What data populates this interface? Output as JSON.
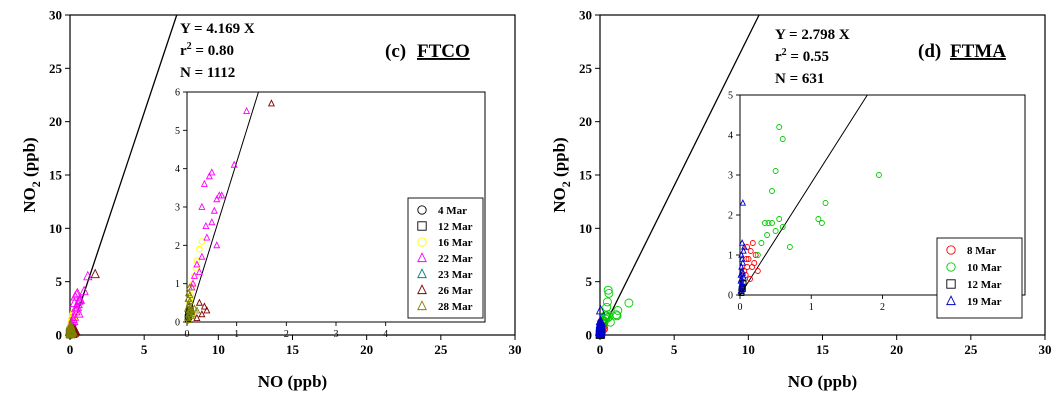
{
  "chart_data": [
    {
      "type": "scatter",
      "panel_label": "(c)",
      "site": "FTCO",
      "xlabel": "NO (ppb)",
      "ylabel": "NO2 (ppb)",
      "xlim": [
        0,
        30
      ],
      "ylim": [
        0,
        30
      ],
      "xticks": [
        "0",
        "5",
        "10",
        "15",
        "20",
        "25",
        "30"
      ],
      "yticks": [
        "0",
        "5",
        "10",
        "15",
        "20",
        "25",
        "30"
      ],
      "fit": {
        "slope": 4.169,
        "eq_text": "Y = 4.169 X",
        "r2_text": "r² = 0.80",
        "n_text": "N = 1112"
      },
      "inset": {
        "xlim": [
          0,
          6
        ],
        "ylim": [
          0,
          6
        ],
        "xticks": [
          "0",
          "1",
          "2",
          "3",
          "4"
        ],
        "yticks": [
          "0",
          "1",
          "2",
          "3",
          "4",
          "5",
          "6"
        ]
      },
      "legend_placement": "bottom-right of inset",
      "series": [
        {
          "name": "4 Mar",
          "marker": "circle",
          "color": "#000000",
          "points": [
            [
              0.02,
              0.15
            ],
            [
              0.03,
              0.25
            ],
            [
              0.05,
              0.3
            ],
            [
              0.04,
              0.1
            ],
            [
              0.06,
              0.4
            ],
            [
              0.02,
              0.05
            ]
          ]
        },
        {
          "name": "12 Mar",
          "marker": "square",
          "color": "#000000",
          "points": [
            [
              0.03,
              0.2
            ],
            [
              0.05,
              0.35
            ],
            [
              0.02,
              0.12
            ],
            [
              0.07,
              0.28
            ]
          ]
        },
        {
          "name": "16 Mar",
          "marker": "circle",
          "color": "#ffff00",
          "points": [
            [
              0.05,
              0.5
            ],
            [
              0.1,
              0.9
            ],
            [
              0.15,
              1.2
            ],
            [
              0.2,
              1.6
            ],
            [
              0.25,
              1.9
            ],
            [
              0.08,
              0.7
            ],
            [
              0.12,
              1.0
            ],
            [
              0.18,
              1.4
            ],
            [
              0.3,
              2.1
            ],
            [
              0.06,
              0.6
            ]
          ]
        },
        {
          "name": "22 Mar",
          "marker": "triangle",
          "color": "#ff00ff",
          "points": [
            [
              0.1,
              0.9
            ],
            [
              0.15,
              1.2
            ],
            [
              0.2,
              1.5
            ],
            [
              0.3,
              1.7
            ],
            [
              0.4,
              2.2
            ],
            [
              0.5,
              2.6
            ],
            [
              0.55,
              2.9
            ],
            [
              0.6,
              3.2
            ],
            [
              0.65,
              3.3
            ],
            [
              0.7,
              3.3
            ],
            [
              0.45,
              3.8
            ],
            [
              0.5,
              3.9
            ],
            [
              0.35,
              3.6
            ],
            [
              0.95,
              4.1
            ],
            [
              0.6,
              2.0
            ],
            [
              1.2,
              5.5
            ],
            [
              0.25,
              1.3
            ],
            [
              0.12,
              1.0
            ],
            [
              0.38,
              2.5
            ],
            [
              0.3,
              3.0
            ]
          ]
        },
        {
          "name": "23 Mar",
          "marker": "triangle",
          "color": "#008080",
          "points": [
            [
              0.03,
              0.2
            ],
            [
              0.05,
              0.3
            ],
            [
              0.04,
              0.15
            ],
            [
              0.06,
              0.25
            ]
          ]
        },
        {
          "name": "26 Mar",
          "marker": "triangle",
          "color": "#800000",
          "points": [
            [
              1.7,
              5.7
            ],
            [
              0.4,
              0.3
            ],
            [
              0.3,
              0.2
            ],
            [
              0.35,
              0.4
            ],
            [
              0.2,
              0.1
            ],
            [
              0.25,
              0.5
            ]
          ]
        },
        {
          "name": "28 Mar",
          "marker": "triangle",
          "color": "#808000",
          "points": [
            [
              0.02,
              0.1
            ],
            [
              0.03,
              0.2
            ],
            [
              0.05,
              0.3
            ],
            [
              0.04,
              0.45
            ],
            [
              0.06,
              0.55
            ],
            [
              0.02,
              0.6
            ],
            [
              0.03,
              0.75
            ],
            [
              0.05,
              0.9
            ],
            [
              0.07,
              0.4
            ],
            [
              0.08,
              0.3
            ],
            [
              0.1,
              0.25
            ],
            [
              0.12,
              0.2
            ],
            [
              0.15,
              0.35
            ],
            [
              0.2,
              0.3
            ],
            [
              0.04,
              0.05
            ],
            [
              0.01,
              0.35
            ],
            [
              0.09,
              0.15
            ],
            [
              0.06,
              0.7
            ]
          ]
        }
      ]
    },
    {
      "type": "scatter",
      "panel_label": "(d)",
      "site": "FTMA",
      "xlabel": "NO (ppb)",
      "ylabel": "NO2 (ppb)",
      "xlim": [
        0,
        30
      ],
      "ylim": [
        0,
        30
      ],
      "xticks": [
        "0",
        "5",
        "10",
        "15",
        "20",
        "25",
        "30"
      ],
      "yticks": [
        "0",
        "5",
        "10",
        "15",
        "20",
        "25",
        "30"
      ],
      "fit": {
        "slope": 2.798,
        "eq_text": "Y = 2.798 X",
        "r2_text": "r² = 0.55",
        "n_text": "N = 631"
      },
      "inset": {
        "xlim": [
          0,
          4
        ],
        "ylim": [
          0,
          5
        ],
        "xticks": [
          "0",
          "1",
          "2",
          "3"
        ],
        "yticks": [
          "0",
          "1",
          "2",
          "3",
          "4",
          "5"
        ]
      },
      "legend_placement": "bottom-right of inset",
      "series": [
        {
          "name": "8 Mar",
          "marker": "circle",
          "color": "#ff0000",
          "points": [
            [
              0.05,
              0.3
            ],
            [
              0.08,
              0.5
            ],
            [
              0.1,
              0.7
            ],
            [
              0.12,
              0.9
            ],
            [
              0.15,
              1.1
            ],
            [
              0.18,
              1.3
            ],
            [
              0.2,
              0.8
            ],
            [
              0.22,
              1.0
            ],
            [
              0.06,
              0.6
            ],
            [
              0.14,
              0.4
            ],
            [
              0.25,
              0.6
            ],
            [
              0.1,
              1.2
            ],
            [
              0.17,
              0.7
            ],
            [
              0.09,
              0.9
            ]
          ]
        },
        {
          "name": "10 Mar",
          "marker": "circle",
          "color": "#00cc00",
          "points": [
            [
              0.25,
              1.0
            ],
            [
              0.3,
              1.3
            ],
            [
              0.35,
              1.8
            ],
            [
              0.4,
              1.8
            ],
            [
              0.45,
              2.6
            ],
            [
              0.5,
              3.1
            ],
            [
              0.55,
              4.2
            ],
            [
              0.6,
              3.9
            ],
            [
              0.6,
              1.7
            ],
            [
              0.7,
              1.2
            ],
            [
              0.55,
              1.9
            ],
            [
              1.1,
              1.9
            ],
            [
              1.2,
              2.3
            ],
            [
              1.95,
              3.0
            ],
            [
              0.5,
              1.6
            ],
            [
              0.45,
              1.8
            ],
            [
              0.38,
              1.5
            ],
            [
              1.15,
              1.8
            ]
          ]
        },
        {
          "name": "12 Mar",
          "marker": "square",
          "color": "#000000",
          "points": [
            [
              0.02,
              0.1
            ],
            [
              0.03,
              0.2
            ],
            [
              0.04,
              0.15
            ],
            [
              0.05,
              0.3
            ],
            [
              0.02,
              0.05
            ]
          ]
        },
        {
          "name": "19 Mar",
          "marker": "triangle",
          "color": "#0000cc",
          "points": [
            [
              0.01,
              0.1
            ],
            [
              0.02,
              0.2
            ],
            [
              0.03,
              0.3
            ],
            [
              0.02,
              0.4
            ],
            [
              0.01,
              0.5
            ],
            [
              0.03,
              0.6
            ],
            [
              0.02,
              0.7
            ],
            [
              0.04,
              0.8
            ],
            [
              0.03,
              0.9
            ],
            [
              0.02,
              1.0
            ],
            [
              0.05,
              1.1
            ],
            [
              0.03,
              1.3
            ],
            [
              0.04,
              2.3
            ],
            [
              0.06,
              1.2
            ],
            [
              0.02,
              0.25
            ],
            [
              0.01,
              0.35
            ],
            [
              0.05,
              0.45
            ],
            [
              0.04,
              0.55
            ],
            [
              0.03,
              0.15
            ]
          ]
        }
      ]
    }
  ]
}
